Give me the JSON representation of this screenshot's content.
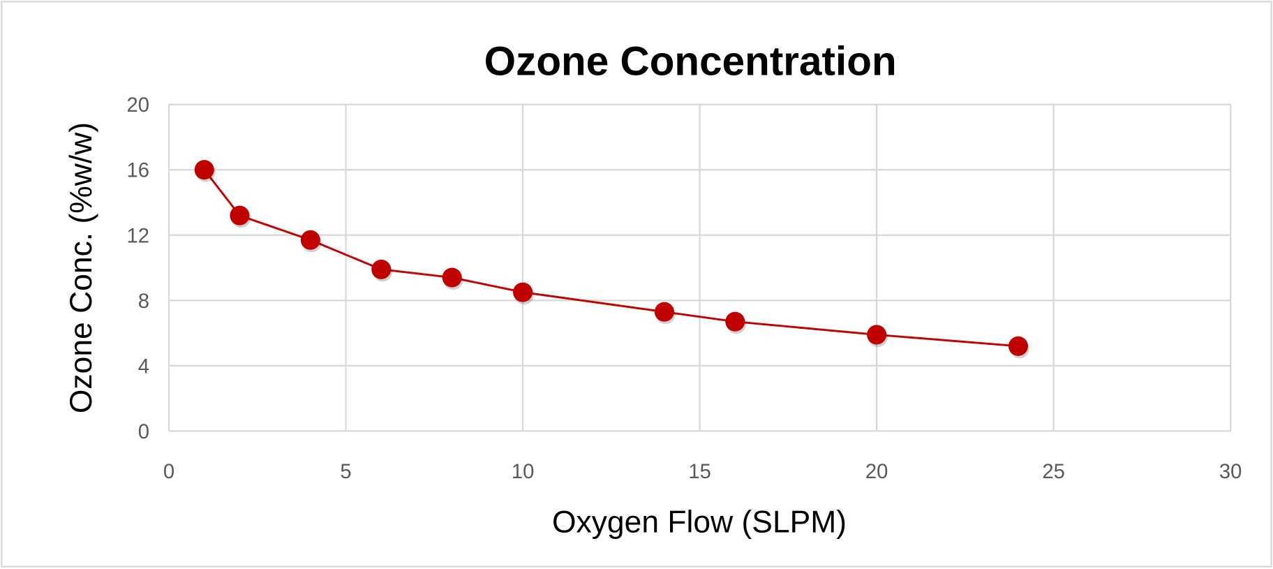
{
  "chart_data": {
    "type": "line",
    "title": "Ozone Concentration",
    "xlabel": "Oxygen Flow (SLPM)",
    "ylabel": "Ozone Conc. (%w/w)",
    "xlim": [
      0,
      30
    ],
    "ylim": [
      0,
      20
    ],
    "xticks": [
      0,
      5,
      10,
      15,
      20,
      25,
      30
    ],
    "yticks": [
      0,
      4,
      8,
      12,
      16,
      20
    ],
    "grid": true,
    "series": [
      {
        "name": "Ozone Conc.",
        "color": "#C00000",
        "x": [
          1,
          2,
          4,
          6,
          8,
          10,
          14,
          16,
          20,
          24
        ],
        "y": [
          16.0,
          13.2,
          11.7,
          9.9,
          9.4,
          8.5,
          7.3,
          6.7,
          5.9,
          5.2
        ]
      }
    ]
  }
}
